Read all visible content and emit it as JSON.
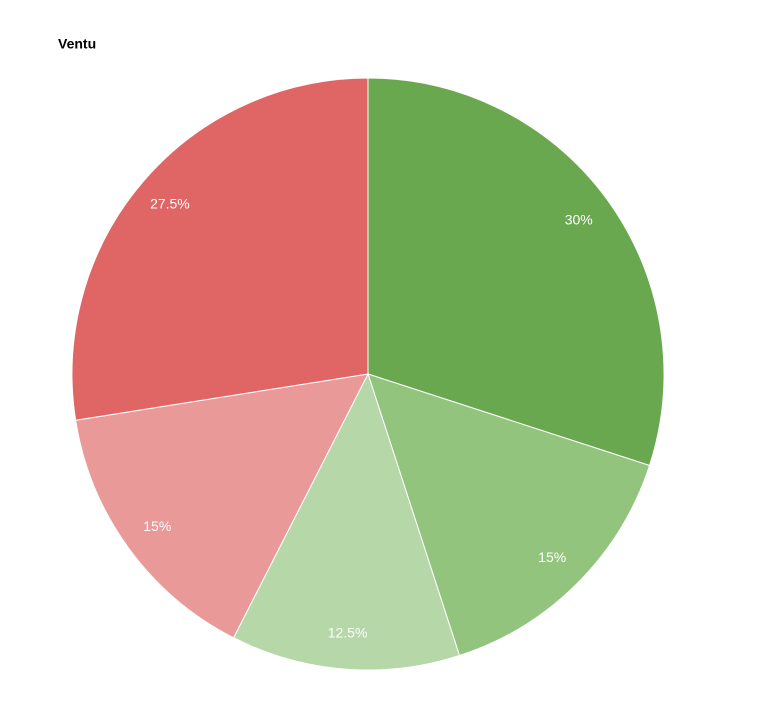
{
  "chart_data": {
    "type": "pie",
    "title": "Ventu",
    "values": [
      30,
      15,
      12.5,
      15,
      27.5
    ],
    "value_labels": [
      "30%",
      "15%",
      "12.5%",
      "15%",
      "27.5%"
    ],
    "colors": [
      "#6aa84f",
      "#93c47d",
      "#b6d7a8",
      "#ea9999",
      "#e06666"
    ]
  }
}
